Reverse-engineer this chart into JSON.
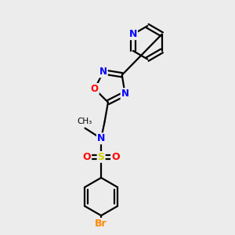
{
  "background_color": "#ececec",
  "bond_color": "#000000",
  "atom_colors": {
    "N": "#0000ff",
    "O": "#ff0000",
    "S": "#cccc00",
    "Br": "#ff8800",
    "C": "#000000"
  },
  "lw": 1.6,
  "dbl_sep": 0.09
}
